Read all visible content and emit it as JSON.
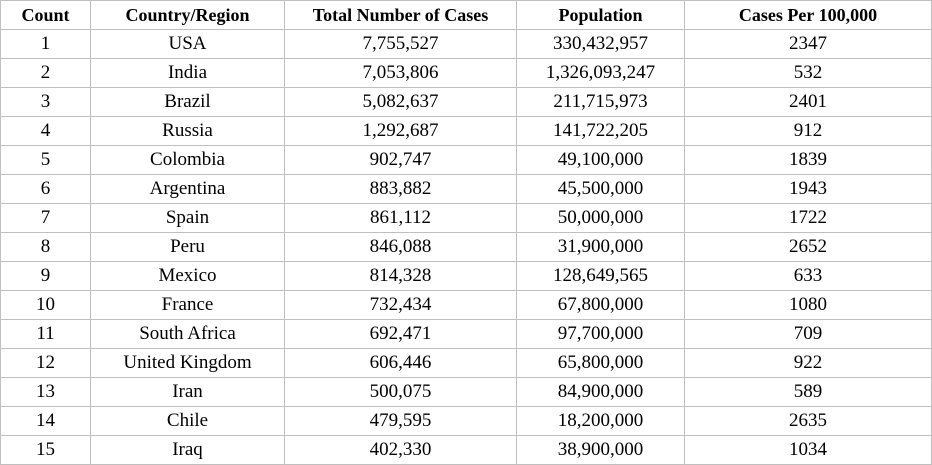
{
  "table": {
    "headers": [
      "Count",
      "Country/Region",
      "Total Number of Cases",
      "Population",
      "Cases Per 100,000"
    ],
    "rows": [
      [
        "1",
        "USA",
        "7,755,527",
        "330,432,957",
        "2347"
      ],
      [
        "2",
        "India",
        "7,053,806",
        "1,326,093,247",
        "532"
      ],
      [
        "3",
        "Brazil",
        "5,082,637",
        "211,715,973",
        "2401"
      ],
      [
        "4",
        "Russia",
        "1,292,687",
        "141,722,205",
        "912"
      ],
      [
        "5",
        "Colombia",
        "902,747",
        "49,100,000",
        "1839"
      ],
      [
        "6",
        "Argentina",
        "883,882",
        "45,500,000",
        "1943"
      ],
      [
        "7",
        "Spain",
        "861,112",
        "50,000,000",
        "1722"
      ],
      [
        "8",
        "Peru",
        "846,088",
        "31,900,000",
        "2652"
      ],
      [
        "9",
        "Mexico",
        "814,328",
        "128,649,565",
        "633"
      ],
      [
        "10",
        "France",
        "732,434",
        "67,800,000",
        "1080"
      ],
      [
        "11",
        "South Africa",
        "692,471",
        "97,700,000",
        "709"
      ],
      [
        "12",
        "United Kingdom",
        "606,446",
        "65,800,000",
        "922"
      ],
      [
        "13",
        "Iran",
        "500,075",
        "84,900,000",
        "589"
      ],
      [
        "14",
        "Chile",
        "479,595",
        "18,200,000",
        "2635"
      ],
      [
        "15",
        "Iraq",
        "402,330",
        "38,900,000",
        "1034"
      ]
    ]
  }
}
